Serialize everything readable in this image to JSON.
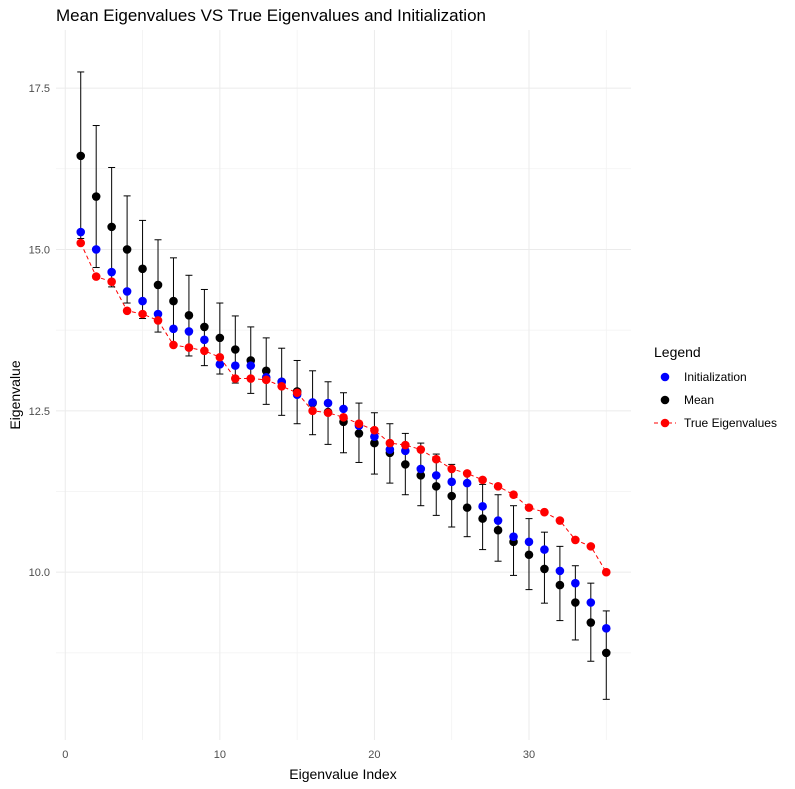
{
  "chart_data": {
    "type": "scatter",
    "title": "Mean Eigenvalues VS True Eigenvalues and Initialization",
    "xlabel": "Eigenvalue Index",
    "ylabel": "Eigenvalue",
    "xlim": [
      -0.6,
      36.6
    ],
    "ylim": [
      7.4,
      18.4
    ],
    "x_ticks": [
      0,
      10,
      20,
      30
    ],
    "y_ticks": [
      10.0,
      12.5,
      15.0,
      17.5
    ],
    "y_tick_labels": [
      "10.0",
      "12.5",
      "15.0",
      "17.5"
    ],
    "grid": true,
    "legend": {
      "title": "Legend",
      "position": "right"
    },
    "x": [
      1,
      2,
      3,
      4,
      5,
      6,
      7,
      8,
      9,
      10,
      11,
      12,
      13,
      14,
      15,
      16,
      17,
      18,
      19,
      20,
      21,
      22,
      23,
      24,
      25,
      26,
      27,
      28,
      29,
      30,
      31,
      32,
      33,
      34,
      35
    ],
    "series": [
      {
        "name": "Initialization",
        "color": "#0000ff",
        "marker": "point",
        "values": [
          15.27,
          15.0,
          14.65,
          14.35,
          14.2,
          14.0,
          13.77,
          13.73,
          13.6,
          13.22,
          13.2,
          13.2,
          13.02,
          12.95,
          12.75,
          12.63,
          12.62,
          12.53,
          12.27,
          12.1,
          11.9,
          11.88,
          11.6,
          11.5,
          11.4,
          11.38,
          11.02,
          10.8,
          10.55,
          10.47,
          10.35,
          10.02,
          9.83,
          9.53,
          9.13
        ]
      },
      {
        "name": "Mean",
        "color": "#000000",
        "marker": "point",
        "values": [
          16.45,
          15.82,
          15.35,
          15.0,
          14.7,
          14.45,
          14.2,
          13.98,
          13.8,
          13.63,
          13.45,
          13.28,
          13.12,
          12.95,
          12.8,
          12.62,
          12.48,
          12.33,
          12.15,
          12.0,
          11.85,
          11.67,
          11.5,
          11.33,
          11.18,
          11.0,
          10.83,
          10.65,
          10.47,
          10.27,
          10.05,
          9.8,
          9.53,
          9.22,
          8.75
        ],
        "error_upper": [
          17.75,
          16.92,
          16.27,
          15.83,
          15.45,
          15.15,
          14.87,
          14.6,
          14.38,
          14.17,
          13.97,
          13.8,
          13.63,
          13.47,
          13.28,
          13.12,
          12.95,
          12.78,
          12.62,
          12.47,
          12.3,
          12.15,
          12.0,
          11.83,
          11.67,
          11.52,
          11.36,
          11.2,
          11.03,
          10.83,
          10.62,
          10.4,
          10.1,
          9.83,
          9.4
        ],
        "error_lower": [
          15.17,
          14.72,
          14.42,
          14.17,
          13.93,
          13.72,
          13.53,
          13.35,
          13.2,
          13.07,
          12.93,
          12.77,
          12.6,
          12.43,
          12.3,
          12.13,
          11.98,
          11.85,
          11.7,
          11.52,
          11.38,
          11.2,
          11.03,
          10.88,
          10.7,
          10.55,
          10.35,
          10.17,
          9.95,
          9.73,
          9.52,
          9.25,
          8.95,
          8.62,
          8.03
        ]
      },
      {
        "name": "True Eigenvalues",
        "color": "#ff0000",
        "marker": "point",
        "line": "dashed",
        "values": [
          15.1,
          14.58,
          14.5,
          14.05,
          14.0,
          13.9,
          13.52,
          13.48,
          13.43,
          13.33,
          13.0,
          13.0,
          12.98,
          12.88,
          12.78,
          12.5,
          12.47,
          12.4,
          12.3,
          12.2,
          12.0,
          11.97,
          11.9,
          11.75,
          11.6,
          11.53,
          11.43,
          11.33,
          11.2,
          11.0,
          10.93,
          10.8,
          10.5,
          10.4,
          10.0
        ]
      }
    ]
  }
}
